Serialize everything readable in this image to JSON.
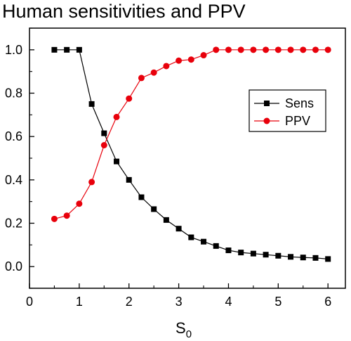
{
  "chart_data": {
    "type": "line",
    "title": "Human sensitivities and PPV",
    "xlabel_main": "S",
    "xlabel_sub": "0",
    "ylabel": "",
    "xlim": [
      0,
      6.35
    ],
    "ylim": [
      -0.1,
      1.1
    ],
    "x_ticks": [
      0,
      1,
      2,
      3,
      4,
      5,
      6
    ],
    "y_ticks": [
      0.0,
      0.2,
      0.4,
      0.6,
      0.8,
      1.0
    ],
    "x_tick_labels": [
      "0",
      "1",
      "2",
      "3",
      "4",
      "5",
      "6"
    ],
    "y_tick_labels": [
      "0.0",
      "0.2",
      "0.4",
      "0.6",
      "0.8",
      "1.0"
    ],
    "grid": false,
    "legend_position": "upper-right",
    "x": [
      0.5,
      0.75,
      1.0,
      1.25,
      1.5,
      1.75,
      2.0,
      2.25,
      2.5,
      2.75,
      3.0,
      3.25,
      3.5,
      3.75,
      4.0,
      4.25,
      4.5,
      4.75,
      5.0,
      5.25,
      5.5,
      5.75,
      6.0
    ],
    "series": [
      {
        "name": "Sens",
        "color": "#000000",
        "marker": "square",
        "values": [
          1.0,
          1.0,
          1.0,
          0.75,
          0.615,
          0.485,
          0.4,
          0.32,
          0.265,
          0.215,
          0.175,
          0.135,
          0.115,
          0.095,
          0.075,
          0.065,
          0.06,
          0.055,
          0.05,
          0.045,
          0.042,
          0.04,
          0.035
        ]
      },
      {
        "name": "PPV",
        "color": "#e8000b",
        "marker": "circle",
        "values": [
          0.22,
          0.235,
          0.29,
          0.39,
          0.56,
          0.69,
          0.775,
          0.87,
          0.895,
          0.925,
          0.95,
          0.955,
          0.975,
          1.0,
          1.0,
          1.0,
          1.0,
          1.0,
          1.0,
          1.0,
          1.0,
          1.0,
          1.0
        ]
      }
    ]
  }
}
